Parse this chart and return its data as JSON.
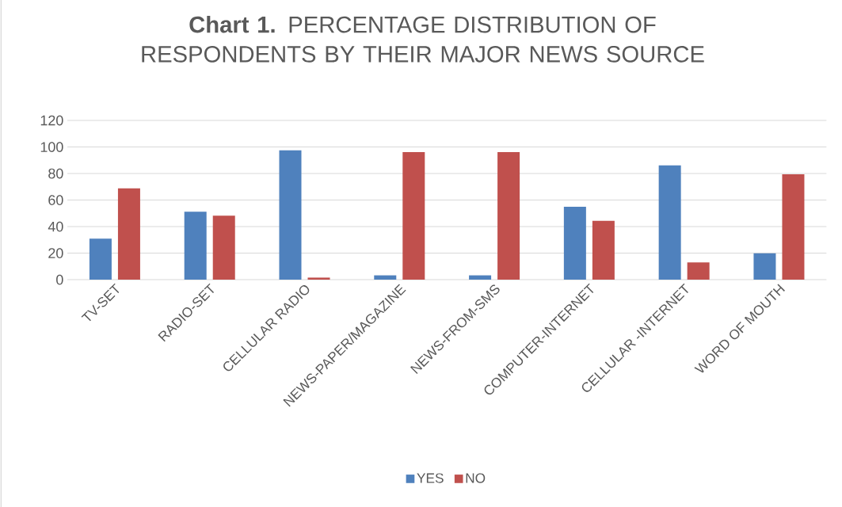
{
  "chart_data": {
    "type": "bar",
    "title": "**Chart 1.** PERCENTAGE DISTRIBUTION OF RESPONDENTS BY THEIR MAJOR NEWS SOURCE",
    "categories": [
      "TV-SET",
      "RADIO-SET",
      "CELLULAR RADIO",
      "NEWS-PAPER/MAGAZINE",
      "NEWS-FROM-SMS",
      "COMPUTER-INTERNET",
      "CELLULAR -INTERNET",
      "WORD OF MOUTH"
    ],
    "series": [
      {
        "name": "YES",
        "color": "#4f81bd",
        "values": [
          31,
          51.3,
          97.7,
          3.3,
          3.3,
          55,
          86.2,
          19.9
        ]
      },
      {
        "name": "NO",
        "color": "#c0504d",
        "values": [
          68.8,
          48.3,
          1.6,
          96.1,
          96.1,
          44.4,
          13.1,
          79.5
        ]
      }
    ],
    "ylim": [
      0,
      120
    ],
    "yticks": [
      0,
      20,
      40,
      60,
      80,
      100,
      120
    ],
    "grid": "y",
    "legend": "bottom"
  }
}
